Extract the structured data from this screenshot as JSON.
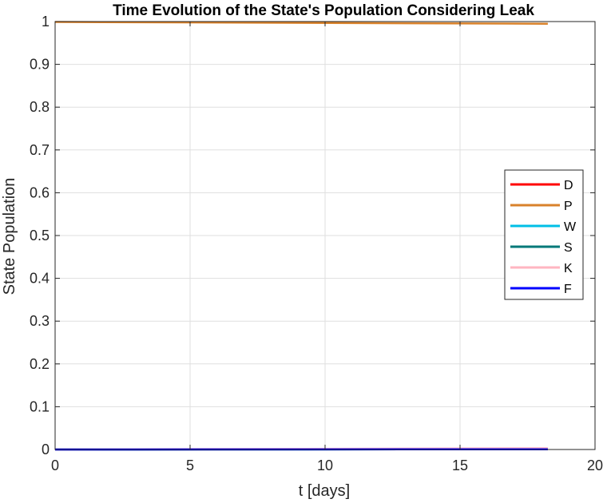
{
  "chart_data": {
    "type": "line",
    "title": "Time Evolution of the State's Population Considering Leak",
    "xlabel": "t [days]",
    "ylabel": "State Population",
    "xlim": [
      0,
      20
    ],
    "ylim": [
      0,
      1
    ],
    "xticks": [
      0,
      5,
      10,
      15,
      20
    ],
    "yticks": [
      0,
      0.1,
      0.2,
      0.3,
      0.4,
      0.5,
      0.6,
      0.7,
      0.8,
      0.9,
      1
    ],
    "xtick_labels": [
      "0",
      "5",
      "10",
      "15",
      "20"
    ],
    "ytick_labels": [
      "0",
      "0.1",
      "0.2",
      "0.3",
      "0.4",
      "0.5",
      "0.6",
      "0.7",
      "0.8",
      "0.9",
      "1"
    ],
    "grid": true,
    "legend_position": "right",
    "series": [
      {
        "name": "D",
        "color": "#ff0000",
        "x": [
          0,
          18.25
        ],
        "y": [
          0,
          0.001
        ]
      },
      {
        "name": "P",
        "color": "#d9822b",
        "x": [
          0,
          18.25
        ],
        "y": [
          0.999,
          0.995
        ]
      },
      {
        "name": "W",
        "color": "#00bfe6",
        "x": [
          0,
          18.25
        ],
        "y": [
          0,
          0.0005
        ]
      },
      {
        "name": "S",
        "color": "#007878",
        "x": [
          0,
          18.25
        ],
        "y": [
          0,
          0.0005
        ]
      },
      {
        "name": "K",
        "color": "#ffb6c1",
        "x": [
          0,
          18.25
        ],
        "y": [
          0,
          0.003
        ]
      },
      {
        "name": "F",
        "color": "#0000ff",
        "x": [
          0,
          18.25
        ],
        "y": [
          0,
          0.0005
        ]
      }
    ]
  }
}
